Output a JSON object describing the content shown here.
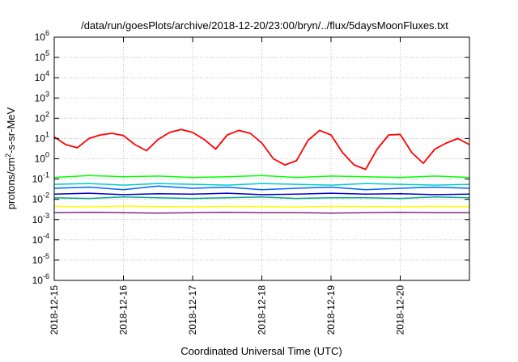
{
  "chart_data": {
    "type": "line",
    "title": "/data/run/goesPlots/archive/2018-12-20/23:00/bryn/../flux/5daysMoonFluxes.txt",
    "xlabel": "Coordinated Universal Time (UTC)",
    "ylabel": {
      "before": "protons/cm",
      "sup": "2",
      "after": "-s-sr-MeV"
    },
    "y_scale": "log",
    "ylim": [
      1e-06,
      1000000.0
    ],
    "y_ticks": [
      {
        "value": 1e-06,
        "exp": "-6"
      },
      {
        "value": 1e-05,
        "exp": "-5"
      },
      {
        "value": 0.0001,
        "exp": "-4"
      },
      {
        "value": 0.001,
        "exp": "-3"
      },
      {
        "value": 0.01,
        "exp": "-2"
      },
      {
        "value": 0.1,
        "exp": "-1"
      },
      {
        "value": 1,
        "exp": "0"
      },
      {
        "value": 10.0,
        "exp": "1"
      },
      {
        "value": 100.0,
        "exp": "2"
      },
      {
        "value": 1000.0,
        "exp": "3"
      },
      {
        "value": 10000.0,
        "exp": "4"
      },
      {
        "value": 100000.0,
        "exp": "5"
      },
      {
        "value": 1000000.0,
        "exp": "6"
      }
    ],
    "x_start": "2018-12-15",
    "x_end": "2018-12-21",
    "x_ticks": [
      "2018-12-15",
      "2018-12-16",
      "2018-12-17",
      "2018-12-18",
      "2018-12-19",
      "2018-12-20"
    ],
    "grid": true,
    "series": [
      {
        "color": "#ff0000",
        "x": [
          "2018-12-15 00:00",
          "2018-12-15 04:00",
          "2018-12-15 08:00",
          "2018-12-15 12:00",
          "2018-12-15 16:00",
          "2018-12-15 20:00",
          "2018-12-16 00:00",
          "2018-12-16 04:00",
          "2018-12-16 08:00",
          "2018-12-16 12:00",
          "2018-12-16 16:00",
          "2018-12-16 20:00",
          "2018-12-17 00:00",
          "2018-12-17 04:00",
          "2018-12-17 08:00",
          "2018-12-17 12:00",
          "2018-12-17 16:00",
          "2018-12-17 20:00",
          "2018-12-18 00:00",
          "2018-12-18 04:00",
          "2018-12-18 08:00",
          "2018-12-18 12:00",
          "2018-12-18 16:00",
          "2018-12-18 20:00",
          "2018-12-19 00:00",
          "2018-12-19 04:00",
          "2018-12-19 08:00",
          "2018-12-19 12:00",
          "2018-12-19 16:00",
          "2018-12-19 20:00",
          "2018-12-20 00:00",
          "2018-12-20 04:00",
          "2018-12-20 08:00",
          "2018-12-20 12:00",
          "2018-12-20 16:00",
          "2018-12-20 20:00",
          "2018-12-21 00:00"
        ],
        "y": [
          12,
          5,
          3.5,
          10,
          15,
          18,
          14,
          5,
          2.5,
          9,
          20,
          28,
          20,
          9,
          3,
          15,
          25,
          18,
          6,
          1,
          0.5,
          0.8,
          8,
          25,
          15,
          2,
          0.5,
          0.3,
          3,
          15,
          16,
          2,
          0.6,
          3,
          6,
          10,
          5
        ]
      },
      {
        "color": "#00ff00",
        "x": [
          "2018-12-15 00:00",
          "2018-12-15 12:00",
          "2018-12-16 00:00",
          "2018-12-16 12:00",
          "2018-12-17 00:00",
          "2018-12-17 12:00",
          "2018-12-18 00:00",
          "2018-12-18 12:00",
          "2018-12-19 00:00",
          "2018-12-19 12:00",
          "2018-12-20 00:00",
          "2018-12-20 12:00",
          "2018-12-21 00:00"
        ],
        "y": [
          0.12,
          0.15,
          0.13,
          0.14,
          0.12,
          0.13,
          0.15,
          0.12,
          0.14,
          0.13,
          0.12,
          0.14,
          0.12
        ]
      },
      {
        "color": "#00cccc",
        "x": [
          "2018-12-15 00:00",
          "2018-12-15 12:00",
          "2018-12-16 00:00",
          "2018-12-16 12:00",
          "2018-12-17 00:00",
          "2018-12-17 12:00",
          "2018-12-18 00:00",
          "2018-12-18 12:00",
          "2018-12-19 00:00",
          "2018-12-19 12:00",
          "2018-12-20 00:00",
          "2018-12-20 12:00",
          "2018-12-21 00:00"
        ],
        "y": [
          0.055,
          0.06,
          0.05,
          0.06,
          0.055,
          0.05,
          0.06,
          0.055,
          0.05,
          0.06,
          0.055,
          0.05,
          0.055
        ]
      },
      {
        "color": "#0066ff",
        "x": [
          "2018-12-15 00:00",
          "2018-12-15 12:00",
          "2018-12-16 00:00",
          "2018-12-16 12:00",
          "2018-12-17 00:00",
          "2018-12-17 12:00",
          "2018-12-18 00:00",
          "2018-12-18 12:00",
          "2018-12-19 00:00",
          "2018-12-19 12:00",
          "2018-12-20 00:00",
          "2018-12-20 12:00",
          "2018-12-21 00:00"
        ],
        "y": [
          0.035,
          0.04,
          0.03,
          0.045,
          0.035,
          0.04,
          0.03,
          0.035,
          0.04,
          0.03,
          0.035,
          0.04,
          0.035
        ]
      },
      {
        "color": "#00aa88",
        "x": [
          "2018-12-15 00:00",
          "2018-12-15 12:00",
          "2018-12-16 00:00",
          "2018-12-16 12:00",
          "2018-12-17 00:00",
          "2018-12-17 12:00",
          "2018-12-18 00:00",
          "2018-12-18 12:00",
          "2018-12-19 00:00",
          "2018-12-19 12:00",
          "2018-12-20 00:00",
          "2018-12-20 12:00",
          "2018-12-21 00:00"
        ],
        "y": [
          0.012,
          0.011,
          0.013,
          0.012,
          0.011,
          0.012,
          0.013,
          0.011,
          0.012,
          0.012,
          0.011,
          0.013,
          0.012
        ]
      },
      {
        "color": "#0000cc",
        "x": [
          "2018-12-15 00:00",
          "2018-12-15 12:00",
          "2018-12-16 00:00",
          "2018-12-16 12:00",
          "2018-12-17 00:00",
          "2018-12-17 12:00",
          "2018-12-18 00:00",
          "2018-12-18 12:00",
          "2018-12-19 00:00",
          "2018-12-19 12:00",
          "2018-12-20 00:00",
          "2018-12-20 12:00",
          "2018-12-21 00:00"
        ],
        "y": [
          0.018,
          0.02,
          0.017,
          0.019,
          0.018,
          0.02,
          0.017,
          0.018,
          0.02,
          0.018,
          0.019,
          0.017,
          0.018
        ]
      },
      {
        "color": "#ffff00",
        "x": [
          "2018-12-15 00:00",
          "2018-12-15 12:00",
          "2018-12-16 00:00",
          "2018-12-16 12:00",
          "2018-12-17 00:00",
          "2018-12-17 12:00",
          "2018-12-18 00:00",
          "2018-12-18 12:00",
          "2018-12-19 00:00",
          "2018-12-19 12:00",
          "2018-12-20 00:00",
          "2018-12-20 12:00",
          "2018-12-21 00:00"
        ],
        "y": [
          0.0045,
          0.0042,
          0.0046,
          0.0044,
          0.0043,
          0.0045,
          0.0044,
          0.0042,
          0.0045,
          0.0044,
          0.0043,
          0.0045,
          0.0044
        ]
      },
      {
        "color": "#7f2f7f",
        "x": [
          "2018-12-15 00:00",
          "2018-12-15 12:00",
          "2018-12-16 00:00",
          "2018-12-16 12:00",
          "2018-12-17 00:00",
          "2018-12-17 12:00",
          "2018-12-18 00:00",
          "2018-12-18 12:00",
          "2018-12-19 00:00",
          "2018-12-19 12:00",
          "2018-12-20 00:00",
          "2018-12-20 12:00",
          "2018-12-21 00:00"
        ],
        "y": [
          0.0022,
          0.0023,
          0.0022,
          0.0021,
          0.0022,
          0.0023,
          0.0022,
          0.0022,
          0.0021,
          0.0022,
          0.0023,
          0.0022,
          0.0022
        ]
      }
    ]
  }
}
